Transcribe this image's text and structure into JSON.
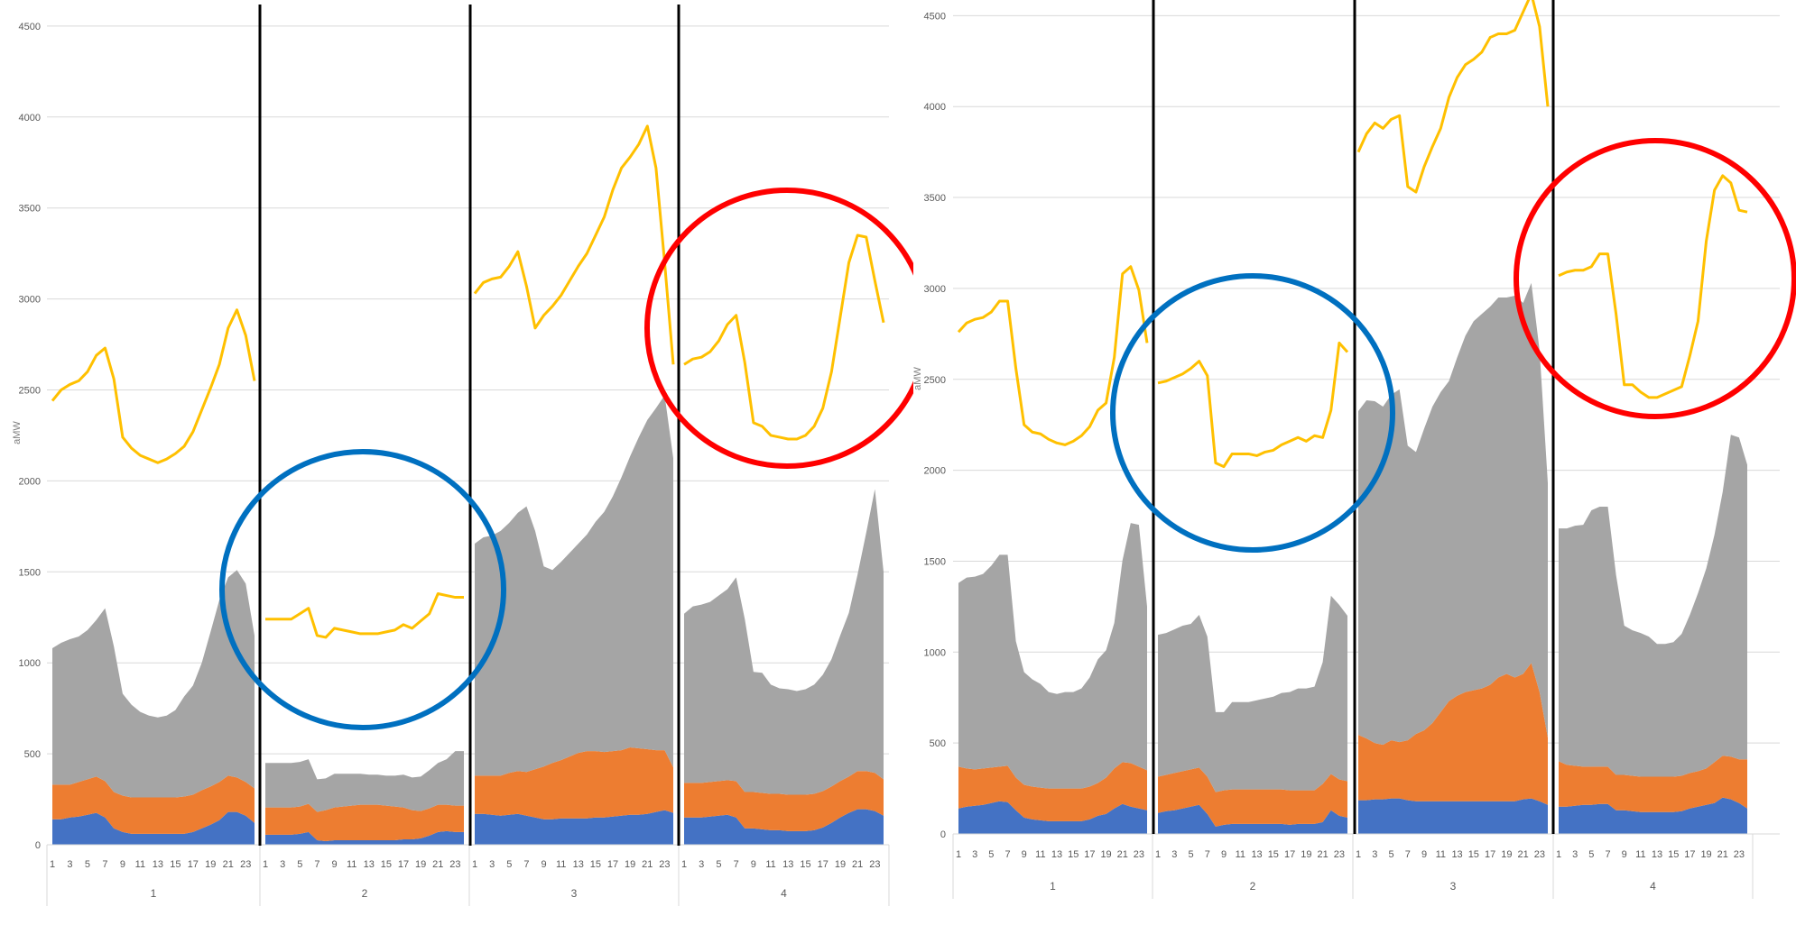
{
  "chart_data": [
    {
      "type": "area",
      "ylabel": "aMW",
      "ylim": [
        0,
        4500
      ],
      "yticks": [
        "0",
        "500",
        "1000",
        "1500",
        "2000",
        "2500",
        "3000",
        "3500",
        "4000",
        "4500"
      ],
      "grid": true,
      "hour_labels": [
        "1",
        "3",
        "5",
        "7",
        "9",
        "11",
        "13",
        "15",
        "17",
        "19",
        "21",
        "23"
      ],
      "groups": [
        "1",
        "2",
        "3",
        "4"
      ],
      "stacked_series": [
        {
          "color": "#4472c4",
          "values": [
            [
              140,
              140,
              150,
              155,
              165,
              175,
              150,
              90,
              70,
              60,
              60,
              60,
              60,
              60,
              60,
              60,
              70,
              90,
              110,
              135,
              180,
              180,
              160,
              120
            ],
            [
              55,
              55,
              55,
              55,
              60,
              70,
              25,
              20,
              25,
              25,
              25,
              25,
              25,
              25,
              25,
              25,
              30,
              30,
              35,
              50,
              70,
              75,
              70,
              70
            ],
            [
              170,
              170,
              165,
              160,
              165,
              170,
              160,
              150,
              140,
              140,
              145,
              145,
              145,
              145,
              150,
              150,
              155,
              160,
              165,
              165,
              170,
              180,
              190,
              175
            ],
            [
              150,
              150,
              150,
              155,
              160,
              165,
              150,
              90,
              90,
              85,
              80,
              80,
              75,
              75,
              75,
              80,
              95,
              120,
              150,
              175,
              195,
              195,
              185,
              160
            ]
          ]
        },
        {
          "color": "#ed7d31",
          "values": [
            [
              190,
              190,
              180,
              190,
              195,
              200,
              200,
              200,
              200,
              200,
              200,
              200,
              200,
              200,
              200,
              205,
              205,
              210,
              210,
              210,
              200,
              190,
              185,
              190
            ],
            [
              150,
              150,
              150,
              150,
              150,
              155,
              155,
              170,
              180,
              185,
              190,
              195,
              195,
              195,
              190,
              185,
              175,
              160,
              150,
              150,
              150,
              145,
              145,
              145
            ],
            [
              210,
              210,
              215,
              220,
              230,
              235,
              240,
              265,
              290,
              310,
              320,
              340,
              360,
              370,
              365,
              360,
              360,
              360,
              370,
              365,
              355,
              340,
              330,
              250
            ],
            [
              190,
              190,
              190,
              190,
              190,
              190,
              200,
              200,
              200,
              200,
              200,
              200,
              200,
              200,
              200,
              200,
              200,
              200,
              200,
              200,
              210,
              210,
              210,
              200
            ]
          ]
        },
        {
          "color": "#a5a5a5",
          "values": [
            [
              750,
              780,
              800,
              800,
              820,
              860,
              950,
              800,
              560,
              510,
              470,
              450,
              440,
              450,
              480,
              550,
              600,
              700,
              850,
              1000,
              1090,
              1140,
              1090,
              840
            ],
            [
              245,
              245,
              245,
              245,
              245,
              245,
              180,
              175,
              185,
              180,
              175,
              170,
              165,
              165,
              165,
              170,
              180,
              180,
              190,
              210,
              230,
              250,
              300,
              300
            ],
            [
              1275,
              1310,
              1320,
              1345,
              1375,
              1420,
              1460,
              1310,
              1100,
              1060,
              1090,
              1120,
              1150,
              1190,
              1260,
              1320,
              1400,
              1500,
              1600,
              1710,
              1810,
              1880,
              1950,
              1700
            ],
            [
              930,
              970,
              980,
              990,
              1020,
              1050,
              1120,
              950,
              660,
              660,
              600,
              580,
              580,
              570,
              580,
              600,
              640,
              700,
              800,
              900,
              1080,
              1310,
              1560,
              1140
            ]
          ]
        }
      ],
      "line_series": {
        "color": "#ffc000",
        "values": [
          [
            2440,
            2500,
            2530,
            2550,
            2600,
            2690,
            2730,
            2560,
            2240,
            2180,
            2140,
            2120,
            2100,
            2120,
            2150,
            2190,
            2270,
            2390,
            2510,
            2640,
            2840,
            2940,
            2800,
            2550
          ],
          [
            1240,
            1240,
            1240,
            1240,
            1270,
            1300,
            1150,
            1140,
            1190,
            1180,
            1170,
            1160,
            1160,
            1160,
            1170,
            1180,
            1210,
            1190,
            1230,
            1270,
            1380,
            1370,
            1360,
            1360
          ],
          [
            3030,
            3090,
            3110,
            3120,
            3180,
            3260,
            3070,
            2840,
            2910,
            2960,
            3020,
            3100,
            3180,
            3250,
            3350,
            3450,
            3600,
            3720,
            3780,
            3850,
            3950,
            3720,
            3200,
            2640
          ],
          [
            2640,
            2670,
            2680,
            2710,
            2770,
            2860,
            2910,
            2650,
            2320,
            2300,
            2250,
            2240,
            2230,
            2230,
            2250,
            2300,
            2400,
            2600,
            2900,
            3200,
            3350,
            3340,
            3100,
            2870
          ]
        ]
      }
    },
    {
      "type": "area",
      "ylabel": "aMW",
      "ylim": [
        0,
        4500
      ],
      "yticks": [
        "0",
        "500",
        "1000",
        "1500",
        "2000",
        "2500",
        "3000",
        "3500",
        "4000",
        "4500"
      ],
      "grid": true,
      "hour_labels": [
        "1",
        "3",
        "5",
        "7",
        "9",
        "11",
        "13",
        "15",
        "17",
        "19",
        "21",
        "23"
      ],
      "groups": [
        "1",
        "2",
        "3",
        "4"
      ],
      "stacked_series": [
        {
          "color": "#4472c4",
          "values": [
            [
              140,
              150,
              155,
              160,
              170,
              180,
              175,
              130,
              90,
              80,
              75,
              70,
              70,
              70,
              70,
              70,
              80,
              100,
              110,
              140,
              165,
              150,
              140,
              130
            ],
            [
              115,
              125,
              130,
              140,
              150,
              160,
              110,
              40,
              50,
              55,
              55,
              55,
              55,
              55,
              55,
              55,
              50,
              55,
              55,
              55,
              65,
              130,
              100,
              90
            ],
            [
              185,
              185,
              190,
              190,
              195,
              195,
              185,
              180,
              180,
              180,
              180,
              180,
              180,
              180,
              180,
              180,
              180,
              180,
              180,
              180,
              190,
              195,
              180,
              160
            ],
            [
              150,
              150,
              155,
              160,
              160,
              165,
              165,
              130,
              130,
              125,
              120,
              120,
              120,
              120,
              120,
              125,
              140,
              150,
              160,
              170,
              200,
              190,
              170,
              140
            ]
          ]
        },
        {
          "color": "#ed7d31",
          "values": [
            [
              230,
              210,
              200,
              200,
              195,
              190,
              200,
              180,
              180,
              180,
              180,
              180,
              180,
              180,
              180,
              180,
              180,
              180,
              200,
              220,
              230,
              240,
              230,
              220
            ],
            [
              200,
              200,
              205,
              205,
              205,
              205,
              205,
              190,
              190,
              190,
              190,
              190,
              190,
              190,
              190,
              190,
              190,
              185,
              185,
              185,
              210,
              200,
              200,
              200
            ],
            [
              360,
              340,
              310,
              300,
              320,
              310,
              330,
              370,
              390,
              430,
              490,
              550,
              580,
              600,
              610,
              620,
              640,
              680,
              700,
              680,
              690,
              745,
              600,
              370
            ],
            [
              250,
              230,
              220,
              210,
              210,
              205,
              205,
              195,
              195,
              195,
              195,
              195,
              195,
              195,
              195,
              195,
              195,
              195,
              200,
              225,
              230,
              235,
              240,
              270
            ]
          ]
        },
        {
          "color": "#a5a5a5",
          "values": [
            [
              1010,
              1050,
              1060,
              1070,
              1110,
              1165,
              1160,
              750,
              620,
              590,
              570,
              530,
              520,
              530,
              530,
              550,
              600,
              680,
              700,
              800,
              1110,
              1320,
              1330,
              900
            ],
            [
              780,
              780,
              790,
              800,
              800,
              840,
              770,
              440,
              430,
              480,
              480,
              480,
              490,
              500,
              510,
              530,
              540,
              560,
              560,
              570,
              670,
              980,
              960,
              910
            ],
            [
              1780,
              1860,
              1880,
              1860,
              1900,
              1940,
              1620,
              1550,
              1660,
              1740,
              1760,
              1760,
              1860,
              1960,
              2030,
              2060,
              2080,
              2090,
              2070,
              2100,
              2040,
              2090,
              1880,
              1400
            ],
            [
              1280,
              1300,
              1320,
              1330,
              1410,
              1430,
              1430,
              1100,
              820,
              800,
              790,
              770,
              730,
              730,
              740,
              780,
              870,
              980,
              1100,
              1250,
              1450,
              1770,
              1770,
              1620
            ]
          ]
        }
      ],
      "line_series": {
        "color": "#ffc000",
        "values": [
          [
            2760,
            2810,
            2830,
            2840,
            2870,
            2930,
            2930,
            2560,
            2250,
            2210,
            2200,
            2170,
            2150,
            2140,
            2160,
            2190,
            2240,
            2330,
            2370,
            2620,
            3080,
            3120,
            2990,
            2700
          ],
          [
            2480,
            2490,
            2510,
            2530,
            2560,
            2600,
            2520,
            2040,
            2020,
            2090,
            2090,
            2090,
            2080,
            2100,
            2110,
            2140,
            2160,
            2180,
            2160,
            2190,
            2180,
            2330,
            2700,
            2650
          ],
          [
            3750,
            3850,
            3910,
            3880,
            3930,
            3950,
            3560,
            3530,
            3670,
            3780,
            3880,
            4050,
            4160,
            4230,
            4260,
            4300,
            4380,
            4400,
            4400,
            4420,
            4520,
            4620,
            4440,
            4000
          ],
          [
            3070,
            3090,
            3100,
            3100,
            3120,
            3190,
            3190,
            2860,
            2470,
            2470,
            2430,
            2400,
            2400,
            2420,
            2440,
            2460,
            2630,
            2820,
            3260,
            3540,
            3620,
            3580,
            3430,
            3420
          ]
        ]
      }
    }
  ]
}
